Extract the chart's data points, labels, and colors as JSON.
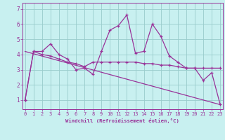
{
  "xlabel": "Windchill (Refroidissement éolien,°C)",
  "background_color": "#c8f0f0",
  "line_color": "#993399",
  "grid_color": "#99cccc",
  "x_ticks": [
    0,
    1,
    2,
    3,
    4,
    5,
    6,
    7,
    8,
    9,
    10,
    11,
    12,
    13,
    14,
    15,
    16,
    17,
    18,
    19,
    20,
    21,
    22,
    23
  ],
  "y_ticks": [
    1,
    2,
    3,
    4,
    5,
    6,
    7
  ],
  "xlim": [
    -0.3,
    23.3
  ],
  "ylim": [
    0.4,
    7.4
  ],
  "series1_x": [
    0,
    1,
    2,
    3,
    4,
    5,
    6,
    7,
    8,
    9,
    10,
    11,
    12,
    13,
    14,
    15,
    16,
    17,
    18,
    19,
    20,
    21,
    22,
    23
  ],
  "series1_y": [
    1.0,
    4.2,
    4.2,
    4.7,
    4.0,
    3.7,
    3.0,
    3.1,
    2.7,
    4.2,
    5.6,
    5.9,
    6.6,
    4.1,
    4.2,
    6.0,
    5.2,
    3.9,
    3.5,
    3.1,
    3.1,
    2.3,
    2.8,
    0.7
  ],
  "series2_x": [
    0,
    1,
    2,
    3,
    4,
    5,
    6,
    7,
    8,
    9,
    10,
    11,
    12,
    13,
    14,
    15,
    16,
    17,
    18,
    19,
    20,
    21,
    22,
    23
  ],
  "series2_y": [
    1.0,
    4.2,
    4.0,
    3.9,
    3.7,
    3.5,
    3.4,
    3.2,
    3.5,
    3.5,
    3.5,
    3.5,
    3.5,
    3.5,
    3.4,
    3.4,
    3.3,
    3.3,
    3.2,
    3.1,
    3.1,
    3.1,
    3.1,
    3.1
  ],
  "series3_x": [
    0,
    23
  ],
  "series3_y": [
    4.2,
    0.7
  ],
  "xlabel_color": "#993399",
  "tick_fontsize": 5.0,
  "xlabel_fontsize": 5.2,
  "linewidth": 0.9,
  "markersize": 3.5
}
